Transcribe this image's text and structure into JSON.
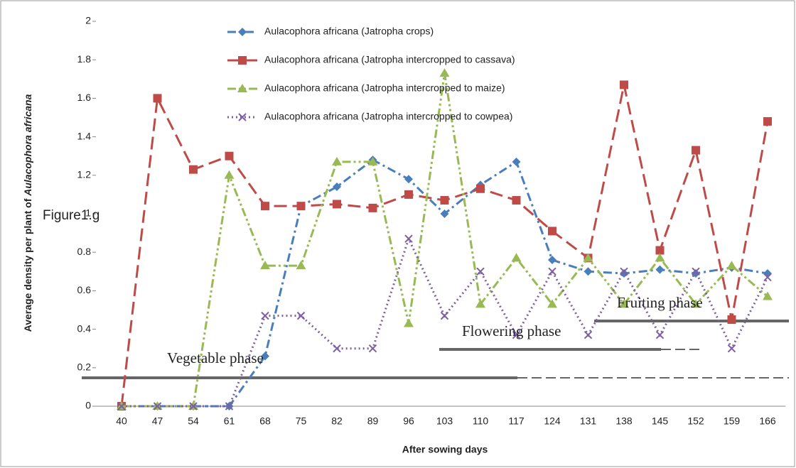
{
  "chart_data": {
    "type": "line",
    "x_label": "After sowing days",
    "y_label": {
      "text": "Average density per plant of",
      "species": "Aulacophora africana"
    },
    "categories": [
      "40",
      "47",
      "54",
      "61",
      "68",
      "75",
      "82",
      "89",
      "96",
      "103",
      "110",
      "117",
      "124",
      "131",
      "138",
      "145",
      "152",
      "159",
      "166"
    ],
    "ylim": [
      0,
      2
    ],
    "yticks": [
      0,
      0.2,
      0.4,
      0.6,
      0.8,
      1,
      1.2,
      1.4,
      1.6,
      1.8,
      2
    ],
    "series": [
      {
        "name": "Aulacophora africana (Jatropha crops)",
        "color": "#4a7ebb",
        "marker": "diamond",
        "dash": "12 5 3 5",
        "values": [
          0,
          0,
          0,
          0,
          0.26,
          1.04,
          1.14,
          1.28,
          1.18,
          1.0,
          1.15,
          1.27,
          0.76,
          0.7,
          0.69,
          0.71,
          0.69,
          0.72,
          0.69
        ]
      },
      {
        "name": "Aulacophora africana (Jatropha intercropped to cassava)",
        "color": "#be4b48",
        "marker": "square",
        "dash": "18 8",
        "values": [
          0,
          1.6,
          1.23,
          1.3,
          1.04,
          1.04,
          1.05,
          1.03,
          1.1,
          1.07,
          1.13,
          1.07,
          0.91,
          0.77,
          1.67,
          0.81,
          1.33,
          0.45,
          1.48
        ]
      },
      {
        "name": "Aulacophora africana (Jatropha intercropped to maize)",
        "color": "#98b954",
        "marker": "triangle",
        "dash": "12 4 3 4 3 4",
        "values": [
          0,
          0,
          0,
          1.2,
          0.73,
          0.73,
          1.27,
          1.27,
          0.43,
          1.73,
          0.53,
          0.77,
          0.53,
          0.77,
          0.53,
          0.77,
          0.53,
          0.73,
          0.57
        ]
      },
      {
        "name": "Aulacophora africana (Jatropha intercropped to cowpea)",
        "color": "#7d60a0",
        "marker": "x",
        "dash": "2 4",
        "values": [
          0,
          0,
          0,
          0,
          0.47,
          0.47,
          0.3,
          0.3,
          0.87,
          0.47,
          0.7,
          0.37,
          0.7,
          0.37,
          0.7,
          0.37,
          0.7,
          0.3,
          0.67
        ]
      }
    ],
    "annotations": [
      "Figure1.g",
      "Vegetable phase",
      "Flowering phase",
      "Fruiting phase"
    ]
  }
}
